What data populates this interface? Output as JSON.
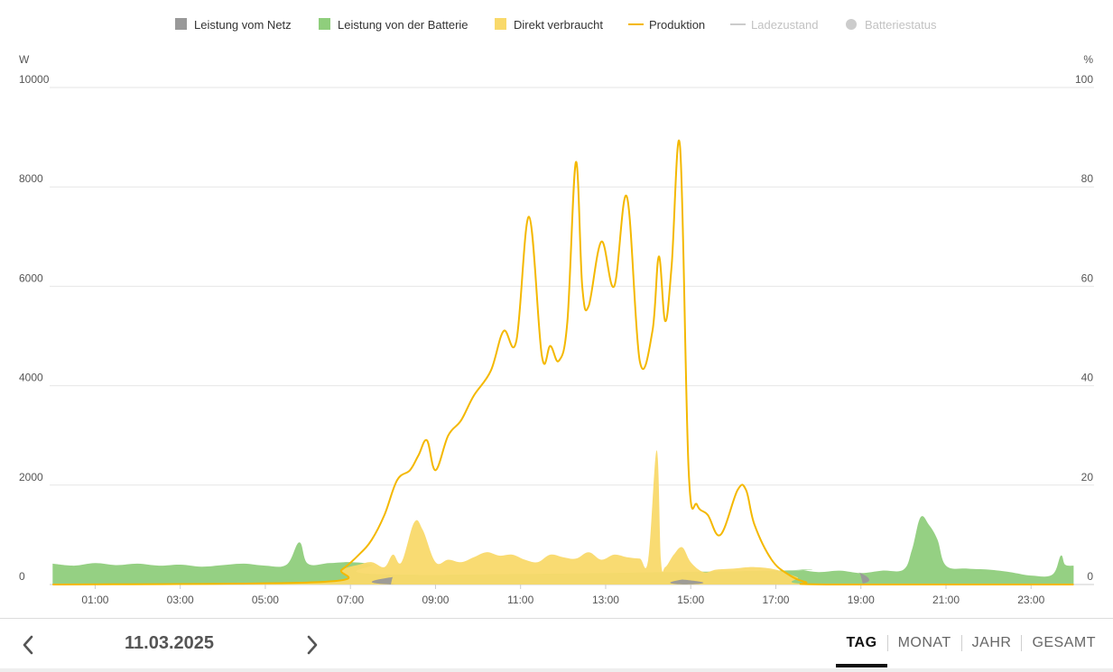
{
  "chart_data": {
    "type": "area",
    "legend_position": "top-center",
    "legend": [
      {
        "name": "Leistung vom Netz",
        "color": "#999999",
        "marker": "square",
        "active": true
      },
      {
        "name": "Leistung von der Batterie",
        "color": "#8fce7c",
        "marker": "square",
        "active": true
      },
      {
        "name": "Direkt verbraucht",
        "color": "#f9d96a",
        "marker": "square",
        "active": true
      },
      {
        "name": "Produktion",
        "color": "#f4b800",
        "marker": "line",
        "active": true
      },
      {
        "name": "Ladezustand",
        "color": "#cccccc",
        "marker": "line",
        "active": false
      },
      {
        "name": "Batteriestatus",
        "color": "#cccccc",
        "marker": "circle",
        "active": false
      }
    ],
    "y_left": {
      "unit": "W",
      "min": 0,
      "max": 10000,
      "ticks": [
        "0",
        "2000",
        "4000",
        "6000",
        "8000",
        "10000"
      ]
    },
    "y_right": {
      "unit": "%",
      "min": 0,
      "max": 100,
      "ticks": [
        "0",
        "20",
        "40",
        "60",
        "80",
        "100"
      ]
    },
    "x_axis": {
      "min_hours": 0,
      "max_hours": 24,
      "tick_hours": [
        1,
        3,
        5,
        7,
        9,
        11,
        13,
        15,
        17,
        19,
        21,
        23
      ],
      "tick_labels": [
        "01:00",
        "03:00",
        "05:00",
        "07:00",
        "09:00",
        "11:00",
        "13:00",
        "15:00",
        "17:00",
        "19:00",
        "21:00",
        "23:00"
      ]
    },
    "grid": true,
    "series": [
      {
        "name": "Produktion",
        "style": "line",
        "color": "#f4b800",
        "x": [
          0,
          6.3,
          6.8,
          7.2,
          7.5,
          7.8,
          8.1,
          8.4,
          8.6,
          8.8,
          9.0,
          9.3,
          9.6,
          9.9,
          10.3,
          10.6,
          10.9,
          11.2,
          11.5,
          11.7,
          11.9,
          12.1,
          12.3,
          12.45,
          12.6,
          12.9,
          13.2,
          13.5,
          13.8,
          14.1,
          14.25,
          14.4,
          14.55,
          14.75,
          14.95,
          15.15,
          15.4,
          15.7,
          16.1,
          16.3,
          16.5,
          16.9,
          17.3,
          17.7,
          18.2,
          24
        ],
        "values": [
          0,
          50,
          300,
          600,
          900,
          1400,
          2100,
          2300,
          2600,
          2900,
          2300,
          3000,
          3300,
          3800,
          4300,
          5100,
          4900,
          7400,
          4600,
          4800,
          4500,
          5300,
          8500,
          6000,
          5600,
          6900,
          6000,
          7800,
          4500,
          5100,
          6600,
          5300,
          6400,
          8800,
          2300,
          1600,
          1400,
          1000,
          1900,
          1900,
          1200,
          500,
          200,
          50,
          0,
          0
        ]
      },
      {
        "name": "Direkt verbraucht",
        "style": "area",
        "color": "#f9d96a",
        "x": [
          0,
          6.3,
          6.8,
          7.2,
          7.5,
          7.8,
          8.0,
          8.2,
          8.5,
          8.7,
          9.0,
          9.3,
          9.6,
          9.9,
          10.2,
          10.5,
          10.8,
          11.1,
          11.4,
          11.7,
          12.0,
          12.3,
          12.6,
          12.9,
          13.2,
          13.5,
          13.8,
          14.0,
          14.2,
          14.3,
          14.4,
          14.6,
          14.8,
          15.0,
          15.3,
          15.6,
          16.0,
          16.5,
          17.0,
          17.5,
          18.0,
          24
        ],
        "values": [
          0,
          50,
          300,
          400,
          450,
          350,
          600,
          450,
          1250,
          1100,
          450,
          500,
          450,
          550,
          650,
          580,
          600,
          500,
          450,
          600,
          550,
          520,
          650,
          500,
          600,
          550,
          520,
          500,
          2700,
          500,
          350,
          600,
          750,
          450,
          250,
          300,
          320,
          350,
          300,
          150,
          0,
          0
        ]
      },
      {
        "name": "Leistung von der Batterie",
        "style": "area",
        "color": "#8fce7c",
        "x": [
          0,
          0.5,
          1.0,
          1.5,
          2.0,
          2.5,
          3.0,
          3.5,
          4.0,
          4.5,
          5.0,
          5.5,
          5.8,
          6.0,
          6.5,
          7.0,
          7.5,
          8.0,
          17.0,
          17.5,
          18.0,
          18.5,
          19.0,
          19.5,
          20.0,
          20.2,
          20.4,
          20.6,
          20.8,
          21.0,
          21.5,
          22.0,
          22.5,
          23.0,
          23.5,
          23.7,
          23.8,
          24.0
        ],
        "values": [
          420,
          380,
          430,
          390,
          420,
          380,
          400,
          360,
          390,
          420,
          380,
          400,
          850,
          420,
          430,
          450,
          400,
          200,
          280,
          300,
          250,
          280,
          230,
          280,
          300,
          700,
          1350,
          1200,
          900,
          380,
          320,
          300,
          250,
          180,
          200,
          580,
          400,
          380
        ]
      },
      {
        "name": "Leistung vom Netz",
        "style": "area",
        "color": "#999999",
        "x": [
          7.95,
          8.0,
          8.05,
          14.75,
          14.8,
          14.85,
          18.85,
          18.95,
          19.05
        ],
        "values": [
          0,
          150,
          0,
          0,
          100,
          0,
          0,
          250,
          0
        ]
      },
      {
        "name": "Ladezustand",
        "style": "line",
        "active": false,
        "x": [],
        "values": []
      },
      {
        "name": "Batteriestatus",
        "style": "point",
        "active": false,
        "x": [],
        "values": []
      }
    ]
  },
  "footer": {
    "date": "11.03.2025",
    "prev_icon": "chevron-left-icon",
    "next_icon": "chevron-right-icon",
    "tabs": [
      {
        "label": "TAG",
        "active": true
      },
      {
        "label": "MONAT",
        "active": false
      },
      {
        "label": "JAHR",
        "active": false
      },
      {
        "label": "GESAMT",
        "active": false
      }
    ]
  }
}
